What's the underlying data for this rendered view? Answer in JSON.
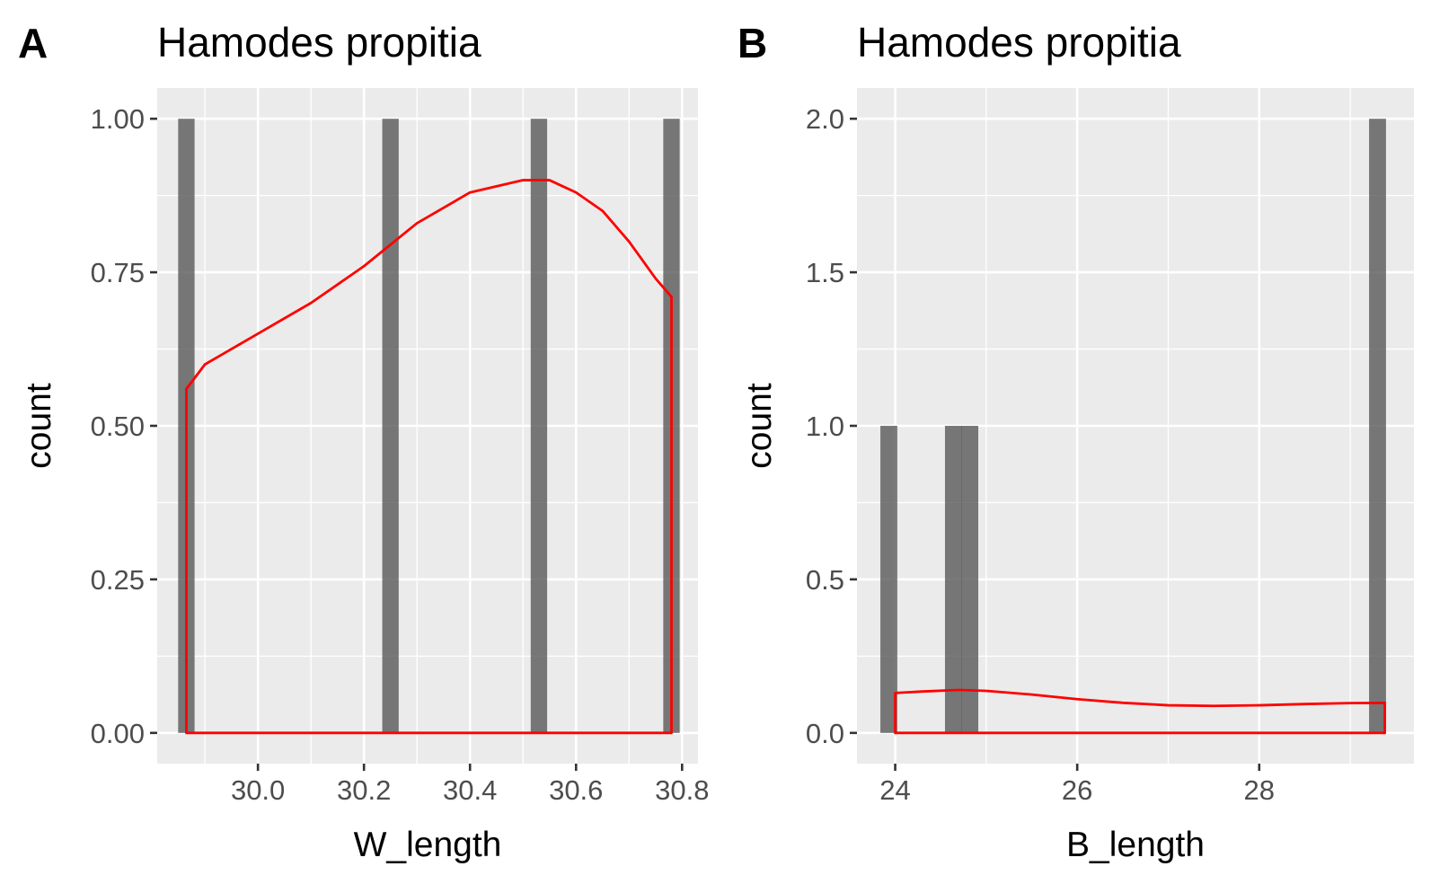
{
  "chart_data": [
    {
      "type": "bar",
      "panel_tag": "A",
      "title": "Hamodes propitia",
      "xlabel": "W_length",
      "ylabel": "count",
      "xlim": [
        29.81,
        30.83
      ],
      "ylim": [
        -0.05,
        1.05
      ],
      "x_ticks": [
        30.0,
        30.2,
        30.4,
        30.6,
        30.8
      ],
      "x_tick_labels": [
        "30.0",
        "30.2",
        "30.4",
        "30.6",
        "30.8"
      ],
      "y_ticks": [
        0.0,
        0.25,
        0.5,
        0.75,
        1.0
      ],
      "y_tick_labels": [
        "0.00",
        "0.25",
        "0.50",
        "0.75",
        "1.00"
      ],
      "grid": true,
      "bin_width": 0.031,
      "bars": [
        {
          "x": 29.865,
          "count": 1
        },
        {
          "x": 30.25,
          "count": 1
        },
        {
          "x": 30.53,
          "count": 1
        },
        {
          "x": 30.78,
          "count": 1
        }
      ],
      "density": {
        "color": "#ff0000",
        "x": [
          29.865,
          29.9,
          30.0,
          30.1,
          30.2,
          30.3,
          30.4,
          30.5,
          30.55,
          30.6,
          30.65,
          30.7,
          30.75,
          30.78
        ],
        "y": [
          0.56,
          0.6,
          0.65,
          0.7,
          0.76,
          0.83,
          0.88,
          0.9,
          0.9,
          0.88,
          0.85,
          0.8,
          0.74,
          0.71
        ]
      }
    },
    {
      "type": "bar",
      "panel_tag": "B",
      "title": "Hamodes propitia",
      "xlabel": "B_length",
      "ylabel": "count",
      "xlim": [
        23.58,
        29.7
      ],
      "ylim": [
        -0.1,
        2.1
      ],
      "x_ticks": [
        24,
        26,
        28
      ],
      "x_tick_labels": [
        "24",
        "26",
        "28"
      ],
      "y_ticks": [
        0.0,
        0.5,
        1.0,
        1.5,
        2.0
      ],
      "y_tick_labels": [
        "0.0",
        "0.5",
        "1.0",
        "1.5",
        "2.0"
      ],
      "grid": true,
      "bin_width": 0.186,
      "bars": [
        {
          "x": 23.93,
          "count": 1
        },
        {
          "x": 24.64,
          "count": 1
        },
        {
          "x": 24.82,
          "count": 1
        },
        {
          "x": 29.3,
          "count": 2
        }
      ],
      "density": {
        "color": "#ff0000",
        "x": [
          24.0,
          24.3,
          24.7,
          25.0,
          25.5,
          26.0,
          26.5,
          27.0,
          27.5,
          28.0,
          28.5,
          29.0,
          29.38
        ],
        "y": [
          0.13,
          0.135,
          0.14,
          0.137,
          0.125,
          0.11,
          0.098,
          0.09,
          0.088,
          0.09,
          0.094,
          0.097,
          0.098
        ]
      }
    }
  ]
}
